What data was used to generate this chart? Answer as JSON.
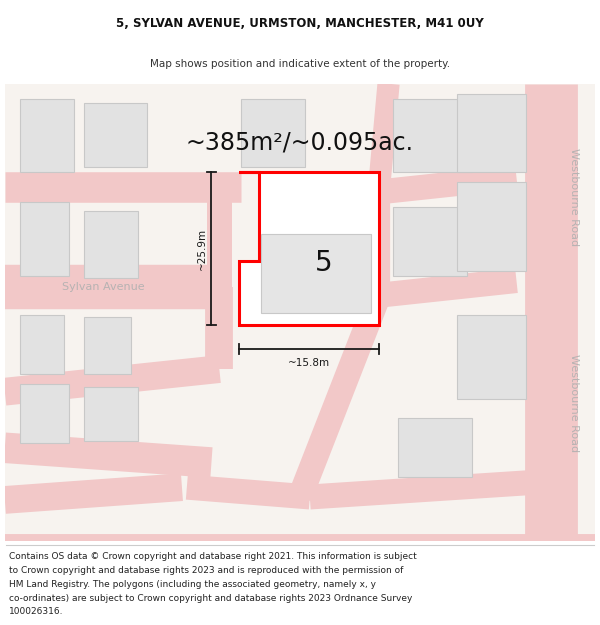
{
  "title_line1": "5, SYLVAN AVENUE, URMSTON, MANCHESTER, M41 0UY",
  "title_line2": "Map shows position and indicative extent of the property.",
  "area_text": "~385m²/~0.095ac.",
  "footer_lines": [
    "Contains OS data © Crown copyright and database right 2021. This information is subject",
    "to Crown copyright and database rights 2023 and is reproduced with the permission of",
    "HM Land Registry. The polygons (including the associated geometry, namely x, y",
    "co-ordinates) are subject to Crown copyright and database rights 2023 Ordnance Survey",
    "100026316."
  ],
  "background_color": "#ffffff",
  "map_bg": "#f7f3ef",
  "road_fill": "#f2c8c8",
  "road_line": "#e8b4b4",
  "building_fill": "#e2e2e2",
  "building_edge": "#c8c8c8",
  "prop_fill": "#ffffff",
  "prop_edge": "#ff0000",
  "dim_color": "#1a1a1a",
  "label_color": "#b0b0b0",
  "text_color": "#222222",
  "number_label": "5",
  "street_label": "Sylvan Avenue",
  "road_label": "Westbourne Road",
  "dim_width": "~15.8m",
  "dim_height": "~25.9m",
  "title_fontsize": 8.5,
  "subtitle_fontsize": 7.5,
  "area_fontsize": 17,
  "label_fontsize": 8,
  "dim_fontsize": 7.5,
  "footer_fontsize": 6.5,
  "number_fontsize": 20
}
